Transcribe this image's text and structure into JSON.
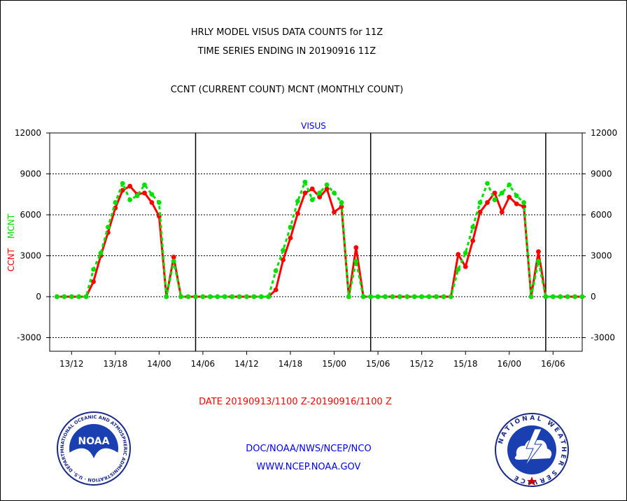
{
  "header": {
    "title_line1": "HRLY MODEL VISUS DATA COUNTS for 11Z",
    "title_line2": "TIME SERIES ENDING IN 20190916 11Z",
    "title_line3": "CCNT (CURRENT COUNT) MCNT (MONTHLY COUNT)"
  },
  "footer": {
    "date_range": "DATE 20190913/1100 Z-20190916/1100 Z",
    "org_path": "DOC/NOAA/NWS/NCEP/NCO",
    "website": "WWW.NCEP.NOAA.GOV",
    "noaa_logo_text": "NOAA",
    "noaa_ring_text": "NATIONAL OCEANIC AND ATMOSPHERIC ADMINISTRATION · U.S. DEPARTMENT OF COMMERCE ·",
    "nws_ring_text": "NATIONAL WEATHER SERVICE"
  },
  "colors": {
    "ccnt": "#ff0000",
    "mcnt": "#00e000",
    "title": "#000000",
    "date_text": "#ff0000",
    "link_text": "#0000ff",
    "panel_label": "#0000ff"
  },
  "chart_data": {
    "type": "line",
    "title": "VISUS",
    "ylabel_ccnt": "CCNT",
    "ylabel_mcnt": "MCNT",
    "ylim": [
      -4000,
      12000
    ],
    "yticks": [
      -3000,
      0,
      3000,
      6000,
      9000,
      12000
    ],
    "ytick_labels": [
      "-3000",
      "0",
      "3000",
      "6000",
      "9000",
      "12000"
    ],
    "x_range_hours": [
      -1,
      72
    ],
    "xtick_hours": [
      2,
      8,
      14,
      20,
      26,
      32,
      38,
      44,
      50,
      56,
      62,
      68
    ],
    "xtick_labels": [
      "13/12",
      "13/18",
      "14/00",
      "14/06",
      "14/12",
      "14/18",
      "15/00",
      "15/06",
      "15/12",
      "15/18",
      "16/00",
      "16/06"
    ],
    "day_divider_hours": [
      19,
      43,
      67
    ],
    "grid_horizontal": true,
    "series": [
      {
        "name": "CCNT",
        "style": "solid",
        "x": [
          0,
          1,
          2,
          3,
          4,
          5,
          6,
          7,
          8,
          9,
          10,
          11,
          12,
          13,
          14,
          15,
          16,
          17,
          18,
          19,
          20,
          21,
          22,
          23,
          24,
          25,
          26,
          27,
          28,
          29,
          30,
          31,
          32,
          33,
          34,
          35,
          36,
          37,
          38,
          39,
          40,
          41,
          42,
          43,
          44,
          45,
          46,
          47,
          48,
          49,
          50,
          51,
          52,
          53,
          54,
          55,
          56,
          57,
          58,
          59,
          60,
          61,
          62,
          63,
          64,
          65,
          66,
          67,
          68,
          69,
          70,
          71,
          72
        ],
        "values": [
          0,
          0,
          0,
          0,
          0,
          1100,
          3000,
          4700,
          6500,
          7800,
          8100,
          7500,
          7600,
          6900,
          5900,
          0,
          2900,
          0,
          0,
          0,
          0,
          0,
          0,
          0,
          0,
          0,
          0,
          0,
          0,
          0,
          500,
          2700,
          4300,
          6100,
          7600,
          7900,
          7300,
          7900,
          6200,
          6600,
          0,
          3600,
          0,
          0,
          0,
          0,
          0,
          0,
          0,
          0,
          0,
          0,
          0,
          0,
          0,
          3100,
          2200,
          4100,
          6200,
          6900,
          7600,
          6200,
          7300,
          6800,
          6600,
          0,
          3300,
          0,
          0,
          0,
          0,
          0,
          0
        ]
      },
      {
        "name": "MCNT",
        "style": "dashed",
        "x": [
          0,
          1,
          2,
          3,
          4,
          5,
          6,
          7,
          8,
          9,
          10,
          11,
          12,
          13,
          14,
          15,
          16,
          17,
          18,
          19,
          20,
          21,
          22,
          23,
          24,
          25,
          26,
          27,
          28,
          29,
          30,
          31,
          32,
          33,
          34,
          35,
          36,
          37,
          38,
          39,
          40,
          41,
          42,
          43,
          44,
          45,
          46,
          47,
          48,
          49,
          50,
          51,
          52,
          53,
          54,
          55,
          56,
          57,
          58,
          59,
          60,
          61,
          62,
          63,
          64,
          65,
          66,
          67,
          68,
          69,
          70,
          71,
          72
        ],
        "values": [
          0,
          0,
          0,
          0,
          0,
          2000,
          3200,
          5100,
          6900,
          8300,
          7100,
          7400,
          8200,
          7500,
          6900,
          0,
          2600,
          0,
          0,
          0,
          0,
          0,
          0,
          0,
          0,
          0,
          0,
          0,
          0,
          0,
          1900,
          3400,
          5100,
          7000,
          8400,
          7100,
          7600,
          8200,
          7600,
          6900,
          0,
          2600,
          0,
          0,
          0,
          0,
          0,
          0,
          0,
          0,
          0,
          0,
          0,
          0,
          0,
          2000,
          3200,
          5100,
          6900,
          8300,
          7100,
          7600,
          8200,
          7400,
          6900,
          0,
          2600,
          0,
          0,
          0,
          0,
          0,
          0
        ]
      }
    ]
  }
}
